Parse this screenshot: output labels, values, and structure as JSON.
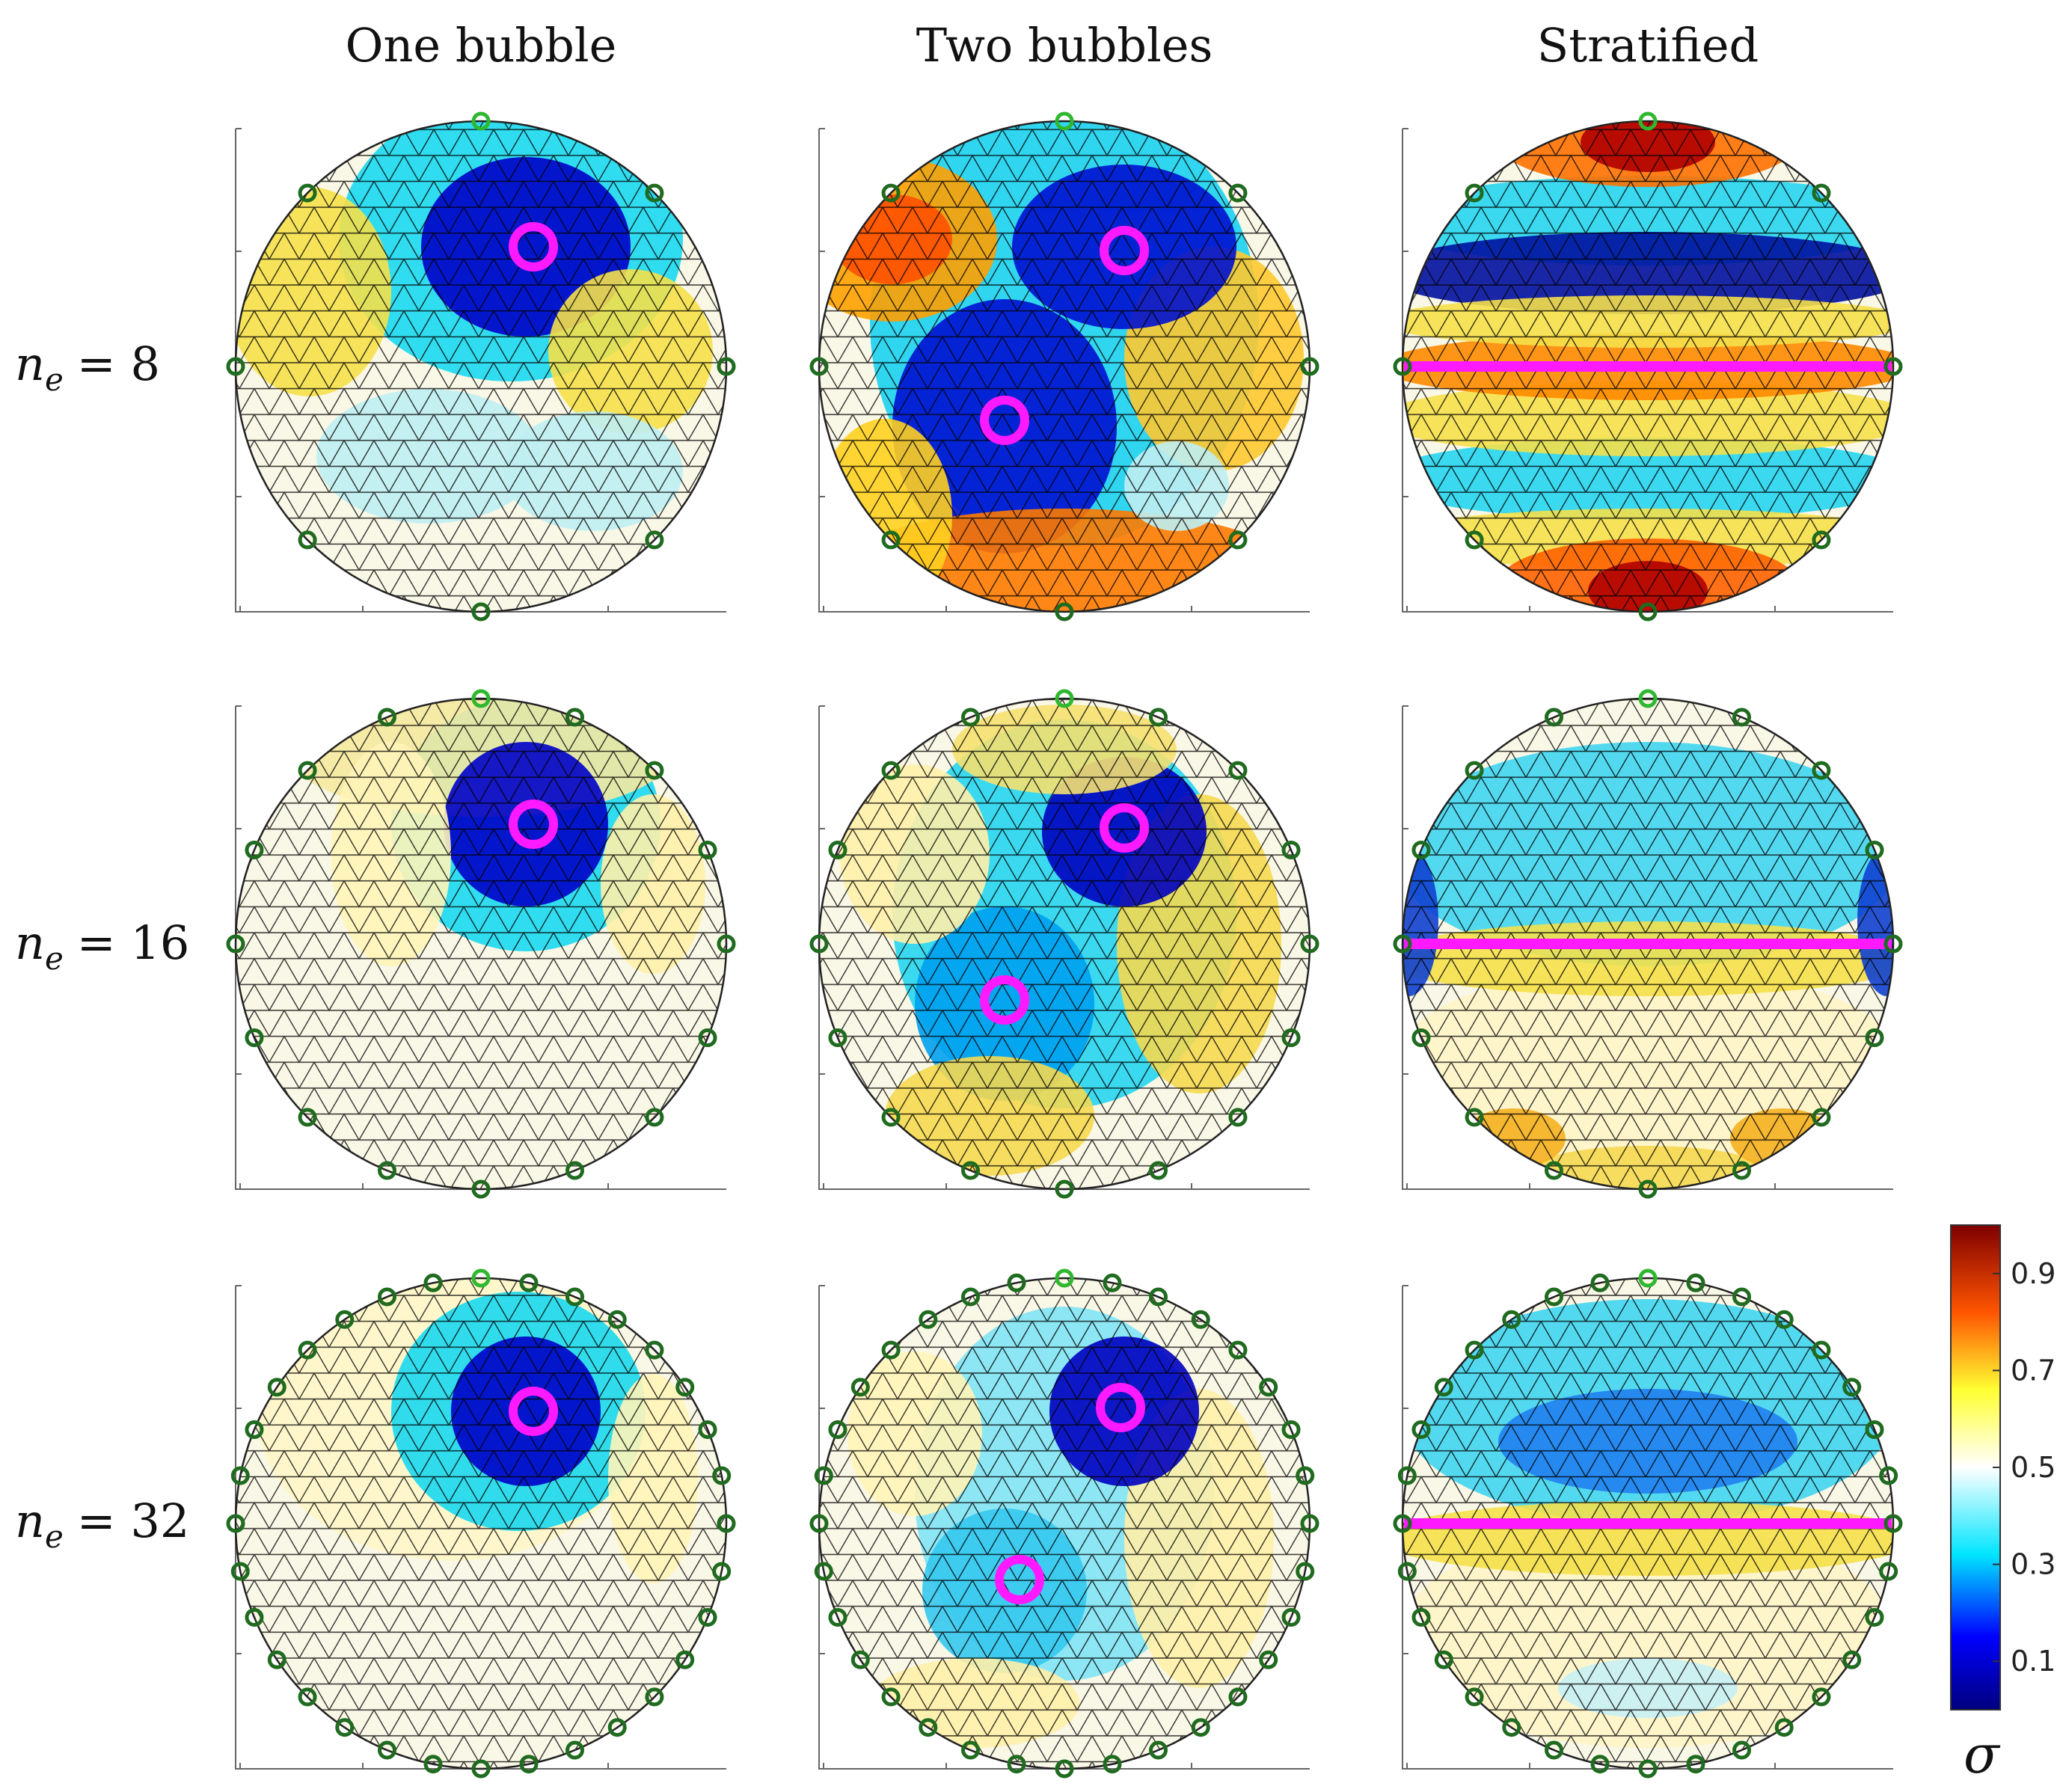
{
  "column_titles": [
    "One bubble",
    "Two bubbles",
    "Stratified"
  ],
  "row_labels": [
    {
      "symbol": "n",
      "subscript": "e",
      "equals": "= 8",
      "electrodes": 8
    },
    {
      "symbol": "n",
      "subscript": "e",
      "equals": "= 16",
      "electrodes": 16
    },
    {
      "symbol": "n",
      "subscript": "e",
      "equals": "= 32",
      "electrodes": 32
    }
  ],
  "colorbar": {
    "label": "σ",
    "ticks": [
      "0.9",
      "0.7",
      "0.5",
      "0.3",
      "0.1"
    ],
    "tick_values": [
      0.9,
      0.7,
      0.5,
      0.3,
      0.1
    ],
    "range": [
      0.0,
      1.0
    ],
    "colormap": "jet-with-white-center"
  },
  "colors": {
    "electrode": "#1f6b1f",
    "electrode_top": "#2fb82f",
    "inclusion_marker": "#ff19ff",
    "mesh": "#000000"
  },
  "panels": [
    {
      "row": 0,
      "col": 0,
      "scenario": "one-bubble"
    },
    {
      "row": 0,
      "col": 1,
      "scenario": "two-bubbles"
    },
    {
      "row": 0,
      "col": 2,
      "scenario": "stratified"
    },
    {
      "row": 1,
      "col": 0,
      "scenario": "one-bubble"
    },
    {
      "row": 1,
      "col": 1,
      "scenario": "two-bubbles"
    },
    {
      "row": 1,
      "col": 2,
      "scenario": "stratified"
    },
    {
      "row": 2,
      "col": 0,
      "scenario": "one-bubble"
    },
    {
      "row": 2,
      "col": 1,
      "scenario": "two-bubbles"
    },
    {
      "row": 2,
      "col": 2,
      "scenario": "stratified"
    }
  ]
}
